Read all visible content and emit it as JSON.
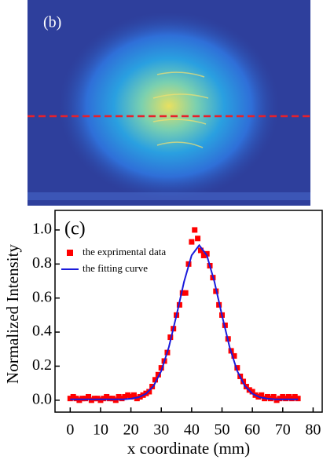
{
  "panel_b": {
    "label": "(b)"
  },
  "chart_data": {
    "type": "scatter",
    "label": "(c)",
    "x_label": "x coordinate (mm)",
    "y_label": "Normalized Intensity",
    "xlim": [
      -5,
      83
    ],
    "ylim": [
      -0.07,
      1.115
    ],
    "xticks": [
      0,
      10,
      20,
      30,
      40,
      50,
      60,
      70,
      80
    ],
    "yticks": [
      {
        "value": 0,
        "label": "0.0"
      },
      0.2,
      0.4,
      0.6,
      0.8,
      {
        "value": 1,
        "label": "1.0"
      }
    ],
    "legend": "upper left",
    "series": [
      {
        "name": "the exprimental data",
        "color": "#ff0000",
        "type": "scatter",
        "x": [
          0,
          1,
          2,
          3,
          4,
          5,
          6,
          7,
          8,
          9,
          10,
          11,
          12,
          13,
          14,
          15,
          16,
          17,
          18,
          19,
          20,
          21,
          22,
          23,
          24,
          25,
          26,
          27,
          28,
          29,
          30,
          31,
          32,
          33,
          34,
          35,
          36,
          37,
          38,
          39,
          40,
          41,
          42,
          43,
          44,
          45,
          46,
          47,
          48,
          49,
          50,
          51,
          52,
          53,
          54,
          55,
          56,
          57,
          58,
          59,
          60,
          61,
          62,
          63,
          64,
          65,
          66,
          67,
          68,
          69,
          70,
          71,
          72,
          73,
          74,
          75
        ],
        "values": [
          0.01,
          0.02,
          0.01,
          0.0,
          0.01,
          0.01,
          0.02,
          0.0,
          0.01,
          0.01,
          0.0,
          0.01,
          0.02,
          0.01,
          0.01,
          0.0,
          0.02,
          0.01,
          0.02,
          0.03,
          0.02,
          0.03,
          0.01,
          0.02,
          0.03,
          0.04,
          0.05,
          0.08,
          0.12,
          0.15,
          0.19,
          0.23,
          0.28,
          0.37,
          0.42,
          0.5,
          0.56,
          0.63,
          0.63,
          0.8,
          0.93,
          1.0,
          0.95,
          0.88,
          0.85,
          0.86,
          0.79,
          0.72,
          0.64,
          0.56,
          0.5,
          0.44,
          0.36,
          0.29,
          0.26,
          0.19,
          0.14,
          0.11,
          0.08,
          0.06,
          0.05,
          0.03,
          0.02,
          0.03,
          0.01,
          0.02,
          0.01,
          0.02,
          0.0,
          0.01,
          0.02,
          0.01,
          0.02,
          0.01,
          0.02,
          0.01
        ]
      },
      {
        "name": "the fitting curve",
        "color": "#1a1adb",
        "type": "line",
        "x": [
          0,
          2.5,
          5,
          7.5,
          10,
          12.5,
          15,
          17.5,
          20,
          22.5,
          25,
          27.5,
          30,
          32.5,
          35,
          37.5,
          40,
          42.5,
          45,
          47.5,
          50,
          52.5,
          55,
          57.5,
          60,
          62.5,
          65,
          67.5,
          70,
          72.5,
          75
        ],
        "values": [
          0.005,
          0.005,
          0.005,
          0.005,
          0.005,
          0.005,
          0.005,
          0.005,
          0.009,
          0.017,
          0.038,
          0.085,
          0.172,
          0.312,
          0.498,
          0.696,
          0.851,
          0.91,
          0.851,
          0.696,
          0.498,
          0.312,
          0.172,
          0.085,
          0.038,
          0.017,
          0.009,
          0.005,
          0.005,
          0.005,
          0.005
        ]
      }
    ]
  }
}
